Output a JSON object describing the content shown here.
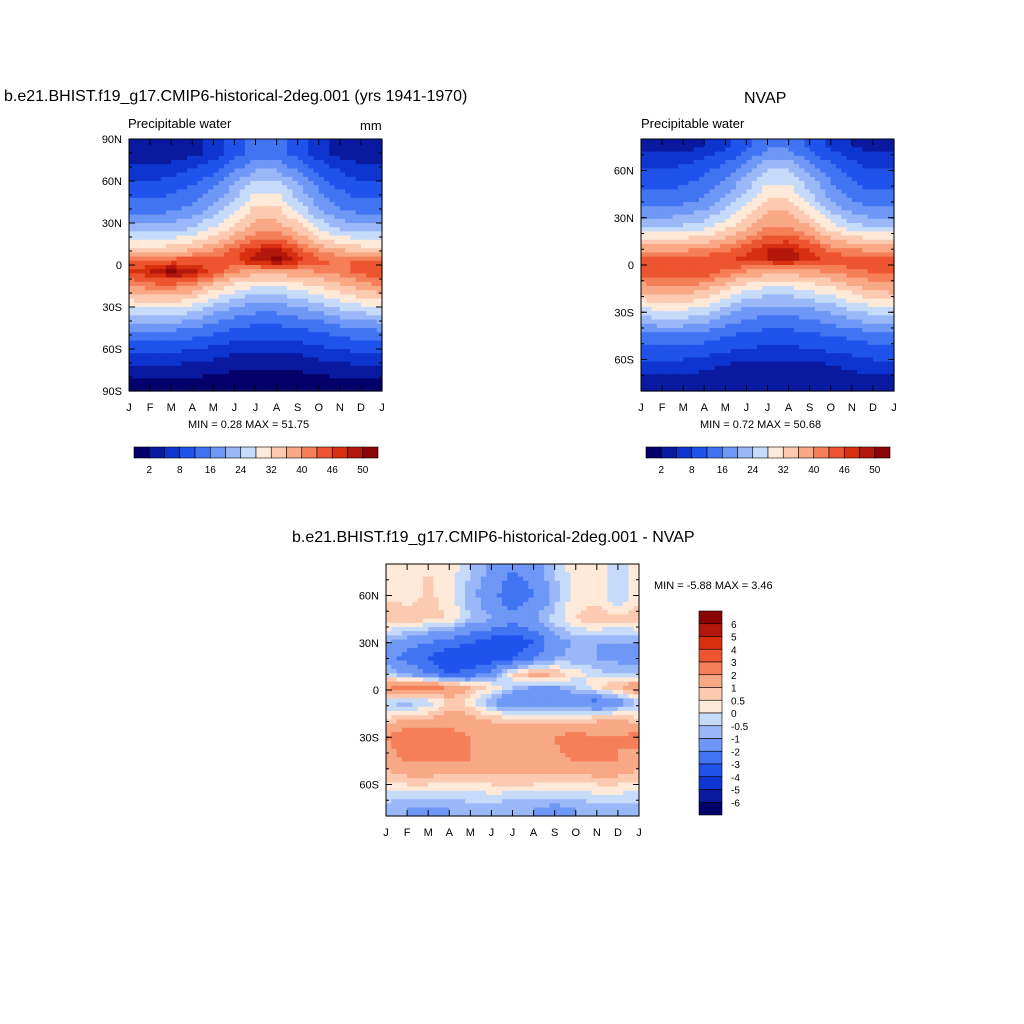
{
  "colors": {
    "abs": [
      "#04006b",
      "#0a1aa0",
      "#0e35d0",
      "#1f53ec",
      "#4074f2",
      "#6e97f6",
      "#9ab8f8",
      "#c6daf9",
      "#ffe9d8",
      "#fccab0",
      "#f9a886",
      "#f47f58",
      "#ec5530",
      "#d8300f",
      "#b3160a",
      "#8a0505"
    ],
    "diff": [
      "#04006b",
      "#0a1aa0",
      "#0e35d0",
      "#1f53ec",
      "#4074f2",
      "#6e97f6",
      "#9ab8f8",
      "#c6daf9",
      "#ffe9d8",
      "#fccab0",
      "#f9a886",
      "#f47f58",
      "#ec5530",
      "#d8300f",
      "#b3160a",
      "#8a0505"
    ]
  },
  "panels": {
    "model": {
      "title": "b.e21.BHIST.f19_g17.CMIP6-historical-2deg.001 (yrs 1941-1970)",
      "variable": "Precipitable water",
      "units": "mm",
      "stats": "MIN =   0.28 MAX =  51.75",
      "ylabels": [
        "90N",
        "60N",
        "30N",
        "0",
        "30S",
        "60S",
        "90S"
      ],
      "xlabels": [
        "J",
        "F",
        "M",
        "A",
        "M",
        "J",
        "J",
        "A",
        "S",
        "O",
        "N",
        "D",
        "J"
      ],
      "colorbar_labels": [
        "2",
        "8",
        "16",
        "24",
        "32",
        "40",
        "46",
        "50"
      ]
    },
    "obs": {
      "title": "NVAP",
      "variable": "Precipitable water",
      "stats": "MIN =   0.72 MAX =  50.68",
      "ylabels": [
        "60N",
        "30N",
        "0",
        "30S",
        "60S"
      ],
      "xlabels": [
        "J",
        "F",
        "M",
        "A",
        "M",
        "J",
        "J",
        "A",
        "S",
        "O",
        "N",
        "D",
        "J"
      ],
      "colorbar_labels": [
        "2",
        "8",
        "16",
        "24",
        "32",
        "40",
        "46",
        "50"
      ]
    },
    "diff": {
      "title": "b.e21.BHIST.f19_g17.CMIP6-historical-2deg.001 - NVAP",
      "stats": "MIN =  -5.88 MAX =   3.46",
      "ylabels": [
        "60N",
        "30N",
        "0",
        "30S",
        "60S"
      ],
      "xlabels": [
        "J",
        "F",
        "M",
        "A",
        "M",
        "J",
        "J",
        "A",
        "S",
        "O",
        "N",
        "D",
        "J"
      ],
      "colorbar_labels": [
        "6",
        "5",
        "4",
        "3",
        "2",
        "1",
        "0.5",
        "0",
        "-0.5",
        "-1",
        "-2",
        "-3",
        "-4",
        "-5",
        "-6"
      ]
    }
  },
  "chart_data": [
    {
      "type": "heatmap",
      "title": "b.e21.BHIST.f19_g17.CMIP6-historical-2deg.001 (yrs 1941-1970)",
      "variable": "Precipitable water",
      "units": "mm",
      "x": [
        "J",
        "F",
        "M",
        "A",
        "M",
        "J",
        "J",
        "A",
        "S",
        "O",
        "N",
        "D",
        "J"
      ],
      "ylim": [
        -90,
        90
      ],
      "min": 0.28,
      "max": 51.75,
      "levels": [
        2,
        5,
        8,
        12,
        16,
        20,
        24,
        28,
        32,
        36,
        40,
        43,
        46,
        48,
        50
      ],
      "latitudes": [
        80,
        60,
        40,
        25,
        10,
        3,
        -5,
        -15,
        -30,
        -45,
        -60,
        -75,
        -85
      ],
      "values": [
        [
          3,
          3,
          3,
          4,
          6,
          10,
          14,
          14,
          10,
          6,
          4,
          3,
          3
        ],
        [
          8,
          8,
          9,
          11,
          14,
          19,
          24,
          24,
          19,
          14,
          10,
          8,
          8
        ],
        [
          14,
          14,
          15,
          17,
          21,
          27,
          33,
          33,
          27,
          20,
          16,
          14,
          14
        ],
        [
          22,
          22,
          23,
          25,
          29,
          34,
          39,
          39,
          35,
          28,
          24,
          22,
          22
        ],
        [
          34,
          34,
          35,
          37,
          40,
          44,
          48,
          49,
          45,
          40,
          37,
          35,
          34
        ],
        [
          44,
          44,
          45,
          45,
          45,
          46,
          49,
          51,
          48,
          44,
          43,
          43,
          44
        ],
        [
          46,
          48,
          51,
          49,
          45,
          40,
          38,
          38,
          39,
          40,
          42,
          44,
          46
        ],
        [
          40,
          42,
          42,
          40,
          35,
          31,
          28,
          28,
          30,
          32,
          35,
          38,
          40
        ],
        [
          28,
          29,
          29,
          27,
          23,
          20,
          18,
          18,
          20,
          22,
          25,
          27,
          28
        ],
        [
          17,
          17,
          17,
          16,
          14,
          12,
          11,
          11,
          12,
          13,
          15,
          16,
          17
        ],
        [
          9,
          9,
          9,
          8,
          7,
          6,
          6,
          6,
          6,
          7,
          8,
          9,
          9
        ],
        [
          4,
          4,
          4,
          3,
          3,
          2,
          2,
          2,
          2,
          3,
          3,
          4,
          4
        ],
        [
          1,
          1,
          1,
          1,
          0.5,
          0.5,
          0.5,
          0.5,
          0.5,
          0.5,
          1,
          1,
          1
        ]
      ]
    },
    {
      "type": "heatmap",
      "title": "NVAP",
      "variable": "Precipitable water",
      "x": [
        "J",
        "F",
        "M",
        "A",
        "M",
        "J",
        "J",
        "A",
        "S",
        "O",
        "N",
        "D",
        "J"
      ],
      "ylim": [
        -80,
        80
      ],
      "min": 0.72,
      "max": 50.68,
      "levels": [
        2,
        5,
        8,
        12,
        16,
        20,
        24,
        28,
        32,
        36,
        40,
        43,
        46,
        48,
        50
      ],
      "latitudes": [
        75,
        60,
        40,
        25,
        10,
        3,
        -5,
        -15,
        -30,
        -45,
        -60,
        -75
      ],
      "values": [
        [
          4,
          4,
          4,
          5,
          7,
          11,
          15,
          15,
          11,
          7,
          5,
          4,
          4
        ],
        [
          8,
          8,
          9,
          11,
          14,
          19,
          24,
          24,
          19,
          14,
          10,
          8,
          8
        ],
        [
          14,
          14,
          15,
          17,
          21,
          27,
          33,
          33,
          27,
          20,
          16,
          14,
          14
        ],
        [
          23,
          23,
          24,
          26,
          30,
          35,
          40,
          40,
          36,
          29,
          25,
          23,
          23
        ],
        [
          38,
          38,
          39,
          40,
          42,
          45,
          48,
          49,
          46,
          42,
          40,
          39,
          38
        ],
        [
          45,
          45,
          46,
          46,
          46,
          47,
          48,
          49,
          47,
          45,
          45,
          45,
          45
        ],
        [
          44,
          45,
          46,
          45,
          42,
          39,
          37,
          37,
          38,
          40,
          42,
          43,
          44
        ],
        [
          38,
          39,
          39,
          37,
          33,
          29,
          27,
          27,
          29,
          31,
          34,
          37,
          38
        ],
        [
          26,
          27,
          27,
          25,
          21,
          18,
          17,
          17,
          18,
          20,
          23,
          25,
          26
        ],
        [
          15,
          15,
          15,
          14,
          12,
          11,
          10,
          10,
          11,
          12,
          13,
          14,
          15
        ],
        [
          8,
          8,
          8,
          7,
          6,
          5,
          5,
          5,
          5,
          6,
          7,
          8,
          8
        ],
        [
          3,
          3,
          3,
          3,
          2,
          2,
          2,
          2,
          2,
          2,
          3,
          3,
          3
        ]
      ]
    },
    {
      "type": "heatmap",
      "title": "b.e21.BHIST.f19_g17.CMIP6-historical-2deg.001 - NVAP",
      "x": [
        "J",
        "F",
        "M",
        "A",
        "M",
        "J",
        "J",
        "A",
        "S",
        "O",
        "N",
        "D",
        "J"
      ],
      "ylim": [
        -80,
        80
      ],
      "min": -5.88,
      "max": 3.46,
      "levels": [
        -6,
        -5,
        -4,
        -3,
        -2,
        -1,
        -0.5,
        0,
        0.5,
        1,
        2,
        3,
        4,
        5,
        6
      ],
      "latitudes": [
        75,
        60,
        45,
        30,
        20,
        10,
        2,
        -8,
        -18,
        -30,
        -45,
        -60,
        -75
      ],
      "values": [
        [
          0.3,
          0.3,
          0.5,
          0.3,
          -0.5,
          -1.2,
          -2.0,
          -1.5,
          -0.5,
          0.3,
          0.2,
          -0.3,
          0.3
        ],
        [
          0.4,
          0.3,
          0.6,
          0.3,
          -0.8,
          -1.5,
          -3.0,
          -2.0,
          -0.8,
          0.4,
          0.3,
          -0.5,
          0.4
        ],
        [
          0.8,
          0.8,
          0.6,
          0.5,
          -0.5,
          -1.0,
          -1.5,
          -1.0,
          -0.3,
          0.5,
          0.8,
          0.6,
          0.8
        ],
        [
          -1.0,
          -1.5,
          -2.0,
          -2.5,
          -3.0,
          -3.5,
          -4.0,
          -3.0,
          -1.5,
          -0.8,
          -1.0,
          -1.0,
          -1.0
        ],
        [
          -1.2,
          -2.5,
          -3.0,
          -4.0,
          -4.0,
          -3.5,
          -3.0,
          -2.0,
          -1.0,
          -0.8,
          -1.0,
          -1.2,
          -1.2
        ],
        [
          -0.5,
          -1.0,
          -2.0,
          -3.0,
          -2.5,
          -1.5,
          0.5,
          1.5,
          1.0,
          0.3,
          -0.3,
          -0.5,
          -0.5
        ],
        [
          2.0,
          2.5,
          2.5,
          2.0,
          1.0,
          0.5,
          -0.5,
          -1.0,
          -1.0,
          -0.5,
          0.5,
          1.0,
          2.0
        ],
        [
          -0.5,
          -0.8,
          -0.5,
          0.5,
          0.3,
          -1.0,
          -2.0,
          -2.0,
          -2.0,
          -1.5,
          -2.5,
          -1.5,
          -0.5
        ],
        [
          0.5,
          0.8,
          1.0,
          1.5,
          1.2,
          0.8,
          0.5,
          0.5,
          0.5,
          0.5,
          0.8,
          1.0,
          0.5
        ],
        [
          2.0,
          3.0,
          3.0,
          2.5,
          2.0,
          2.0,
          2.0,
          1.8,
          2.0,
          2.5,
          2.0,
          2.0,
          2.5
        ],
        [
          1.5,
          2.0,
          2.0,
          2.0,
          2.0,
          1.5,
          1.5,
          1.5,
          1.8,
          2.0,
          2.0,
          2.0,
          1.5
        ],
        [
          0.3,
          0.5,
          0.5,
          0.3,
          0.3,
          0.5,
          0.5,
          0.5,
          0.3,
          0.3,
          0.5,
          0.5,
          0.3
        ],
        [
          -0.8,
          -1.0,
          -1.2,
          -1.0,
          -0.8,
          -0.8,
          -1.0,
          -1.0,
          -1.2,
          -1.0,
          -0.8,
          -0.8,
          -0.8
        ]
      ]
    }
  ]
}
